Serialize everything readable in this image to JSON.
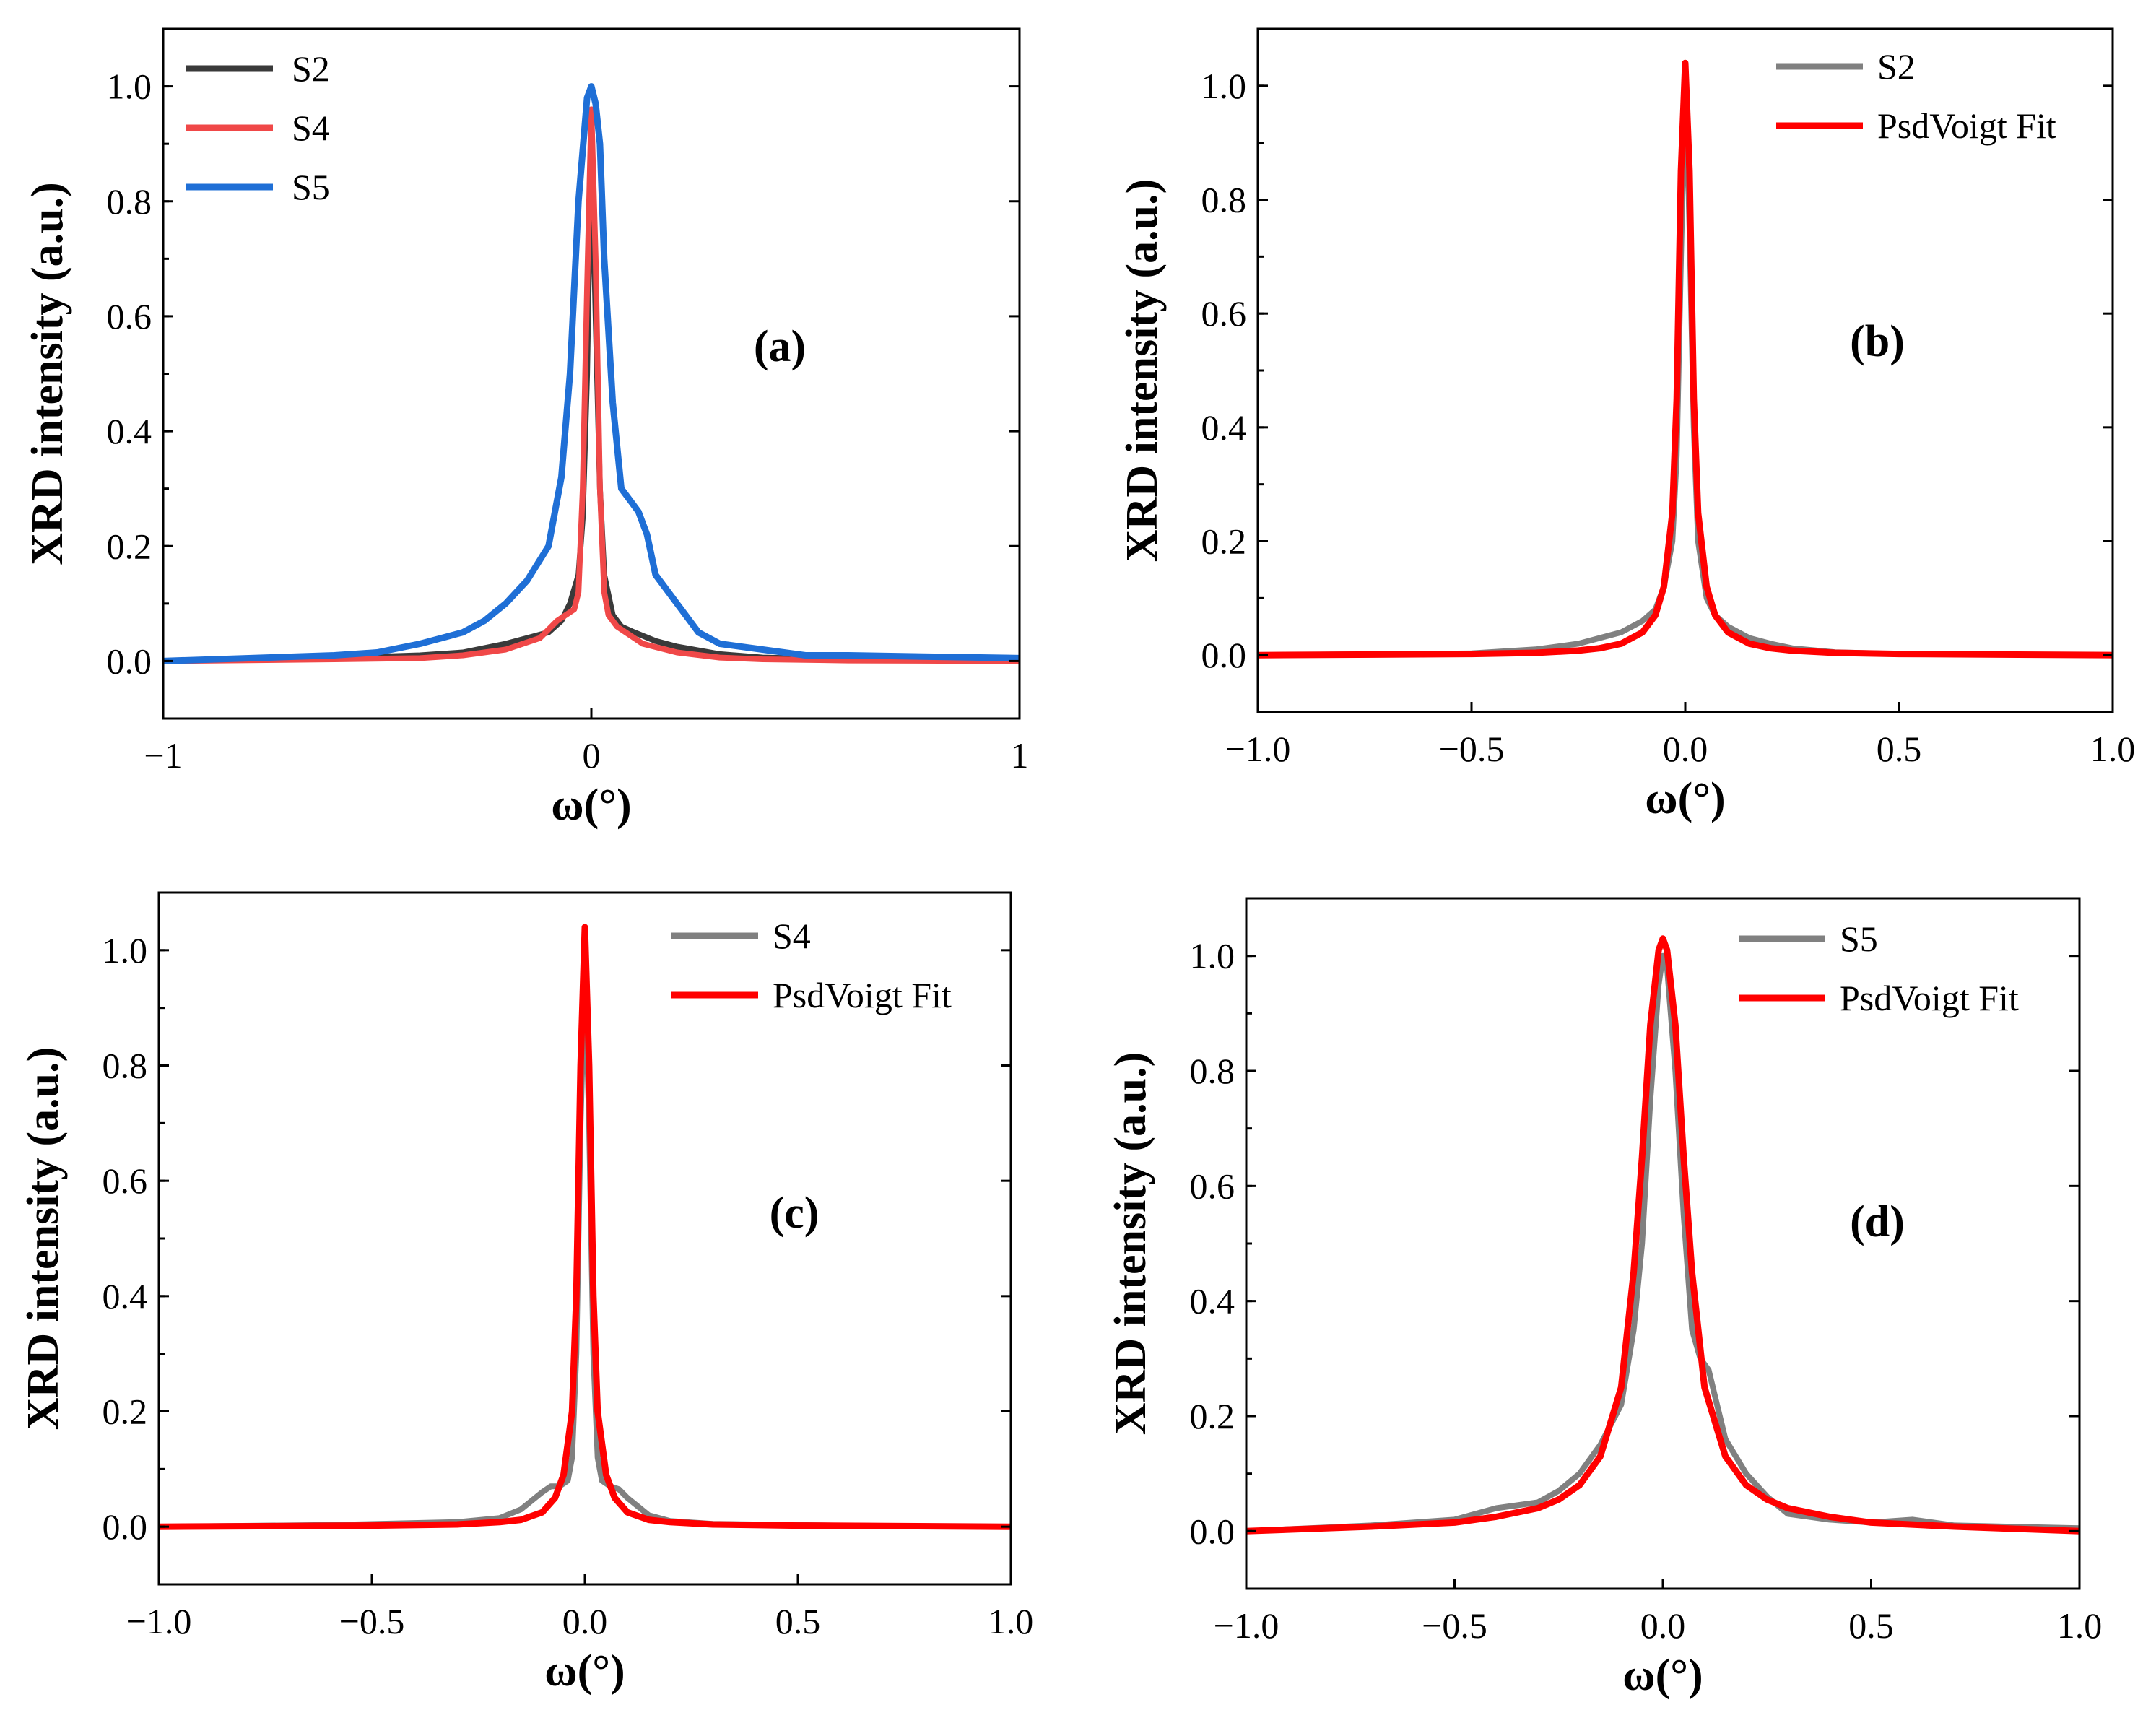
{
  "figure": {
    "panels": [
      {
        "id": "a",
        "label": "(a)",
        "xticks": [
          -1,
          0,
          1
        ],
        "xtick_labels": [
          "−1",
          "0",
          "1"
        ],
        "legend": [
          {
            "name": "S2",
            "color": "#3a3a3a"
          },
          {
            "name": "S4",
            "color": "#f04848"
          },
          {
            "name": "S5",
            "color": "#1f6fd6"
          }
        ]
      },
      {
        "id": "b",
        "label": "(b)",
        "xticks": [
          -1.0,
          -0.5,
          0.0,
          0.5,
          1.0
        ],
        "xtick_labels": [
          "−1.0",
          "−0.5",
          "0.0",
          "0.5",
          "1.0"
        ],
        "legend": [
          {
            "name": "S2",
            "color": "#808080"
          },
          {
            "name": "PsdVoigt Fit",
            "color": "#ff0000"
          }
        ]
      },
      {
        "id": "c",
        "label": "(c)",
        "xticks": [
          -1.0,
          -0.5,
          0.0,
          0.5,
          1.0
        ],
        "xtick_labels": [
          "−1.0",
          "−0.5",
          "0.0",
          "0.5",
          "1.0"
        ],
        "legend": [
          {
            "name": "S4",
            "color": "#808080"
          },
          {
            "name": "PsdVoigt Fit",
            "color": "#ff0000"
          }
        ]
      },
      {
        "id": "d",
        "label": "(d)",
        "xticks": [
          -1.0,
          -0.5,
          0.0,
          0.5,
          1.0
        ],
        "xtick_labels": [
          "−1.0",
          "−0.5",
          "0.0",
          "0.5",
          "1.0"
        ],
        "legend": [
          {
            "name": "S5",
            "color": "#808080"
          },
          {
            "name": "PsdVoigt Fit",
            "color": "#ff0000"
          }
        ]
      }
    ]
  },
  "chart_data": [
    {
      "panel": "a",
      "type": "line",
      "xlabel": "ω(°)",
      "ylabel": "XRD intensity (a.u.)",
      "xlim": [
        -1,
        1
      ],
      "ylim": [
        -0.1,
        1.1
      ],
      "yticks": [
        0.0,
        0.2,
        0.4,
        0.6,
        0.8,
        1.0
      ],
      "ytick_labels": [
        "0.0",
        "0.2",
        "0.4",
        "0.6",
        "0.8",
        "1.0"
      ],
      "series": [
        {
          "name": "S2",
          "color": "#3a3a3a",
          "x": [
            -1.0,
            -0.6,
            -0.4,
            -0.3,
            -0.2,
            -0.15,
            -0.1,
            -0.07,
            -0.05,
            -0.03,
            -0.02,
            -0.01,
            0.0,
            0.01,
            0.02,
            0.03,
            0.05,
            0.07,
            0.1,
            0.15,
            0.2,
            0.3,
            0.4,
            0.6,
            1.0
          ],
          "y": [
            0.0,
            0.005,
            0.01,
            0.015,
            0.03,
            0.04,
            0.05,
            0.07,
            0.1,
            0.15,
            0.25,
            0.5,
            0.93,
            0.6,
            0.3,
            0.15,
            0.08,
            0.06,
            0.05,
            0.035,
            0.025,
            0.012,
            0.006,
            0.003,
            0.0
          ]
        },
        {
          "name": "S4",
          "color": "#f04848",
          "x": [
            -1.0,
            -0.6,
            -0.4,
            -0.3,
            -0.2,
            -0.12,
            -0.08,
            -0.06,
            -0.04,
            -0.03,
            -0.02,
            -0.01,
            0.0,
            0.01,
            0.02,
            0.03,
            0.04,
            0.06,
            0.08,
            0.12,
            0.2,
            0.3,
            0.4,
            0.6,
            1.0
          ],
          "y": [
            0.0,
            0.003,
            0.005,
            0.01,
            0.02,
            0.04,
            0.07,
            0.08,
            0.09,
            0.12,
            0.3,
            0.65,
            0.96,
            0.7,
            0.3,
            0.12,
            0.08,
            0.06,
            0.05,
            0.03,
            0.015,
            0.006,
            0.003,
            0.001,
            0.0
          ]
        },
        {
          "name": "S5",
          "color": "#1f6fd6",
          "x": [
            -1.0,
            -0.6,
            -0.5,
            -0.4,
            -0.35,
            -0.3,
            -0.25,
            -0.2,
            -0.15,
            -0.1,
            -0.07,
            -0.05,
            -0.03,
            -0.01,
            0.0,
            0.01,
            0.02,
            0.03,
            0.05,
            0.07,
            0.09,
            0.11,
            0.13,
            0.15,
            0.2,
            0.25,
            0.3,
            0.4,
            0.5,
            0.6,
            1.0
          ],
          "y": [
            0.0,
            0.01,
            0.015,
            0.03,
            0.04,
            0.05,
            0.07,
            0.1,
            0.14,
            0.2,
            0.32,
            0.5,
            0.8,
            0.98,
            1.0,
            0.97,
            0.9,
            0.7,
            0.45,
            0.3,
            0.28,
            0.26,
            0.22,
            0.15,
            0.1,
            0.05,
            0.03,
            0.02,
            0.01,
            0.01,
            0.005
          ]
        }
      ]
    },
    {
      "panel": "b",
      "type": "line",
      "xlabel": "ω(°)",
      "ylabel": "XRD intensity (a.u.)",
      "xlim": [
        -1.0,
        1.0
      ],
      "ylim": [
        -0.1,
        1.1
      ],
      "yticks": [
        0.0,
        0.2,
        0.4,
        0.6,
        0.8,
        1.0
      ],
      "ytick_labels": [
        "0.0",
        "0.2",
        "0.4",
        "0.6",
        "0.8",
        "1.0"
      ],
      "series": [
        {
          "name": "S2",
          "color": "#808080",
          "x": [
            -1.0,
            -0.5,
            -0.35,
            -0.25,
            -0.2,
            -0.15,
            -0.1,
            -0.07,
            -0.05,
            -0.03,
            -0.02,
            -0.01,
            0.0,
            0.01,
            0.02,
            0.03,
            0.05,
            0.07,
            0.1,
            0.15,
            0.2,
            0.25,
            0.35,
            0.5,
            1.0
          ],
          "y": [
            0.0,
            0.003,
            0.01,
            0.02,
            0.03,
            0.04,
            0.06,
            0.08,
            0.12,
            0.2,
            0.35,
            0.7,
            1.03,
            0.75,
            0.4,
            0.2,
            0.1,
            0.07,
            0.05,
            0.03,
            0.02,
            0.012,
            0.005,
            0.002,
            0.0
          ]
        },
        {
          "name": "PsdVoigt Fit",
          "color": "#ff0000",
          "x": [
            -1.0,
            -0.5,
            -0.35,
            -0.25,
            -0.2,
            -0.15,
            -0.1,
            -0.07,
            -0.05,
            -0.03,
            -0.02,
            -0.01,
            0.0,
            0.01,
            0.02,
            0.03,
            0.05,
            0.07,
            0.1,
            0.15,
            0.2,
            0.25,
            0.35,
            0.5,
            1.0
          ],
          "y": [
            0.0,
            0.002,
            0.004,
            0.008,
            0.012,
            0.02,
            0.04,
            0.07,
            0.12,
            0.25,
            0.45,
            0.85,
            1.04,
            0.85,
            0.45,
            0.25,
            0.12,
            0.07,
            0.04,
            0.02,
            0.012,
            0.008,
            0.004,
            0.002,
            0.0
          ]
        }
      ]
    },
    {
      "panel": "c",
      "type": "line",
      "xlabel": "ω(°)",
      "ylabel": "XRD intensity (a.u.)",
      "xlim": [
        -1.0,
        1.0
      ],
      "ylim": [
        -0.1,
        1.1
      ],
      "yticks": [
        0.0,
        0.2,
        0.4,
        0.6,
        0.8,
        1.0
      ],
      "ytick_labels": [
        "0.0",
        "0.2",
        "0.4",
        "0.6",
        "0.8",
        "1.0"
      ],
      "series": [
        {
          "name": "S4",
          "color": "#808080",
          "x": [
            -1.0,
            -0.6,
            -0.3,
            -0.2,
            -0.15,
            -0.1,
            -0.08,
            -0.06,
            -0.04,
            -0.03,
            -0.02,
            -0.01,
            0.0,
            0.01,
            0.02,
            0.03,
            0.04,
            0.06,
            0.08,
            0.1,
            0.15,
            0.2,
            0.3,
            0.6,
            1.0
          ],
          "y": [
            0.0,
            0.003,
            0.008,
            0.015,
            0.03,
            0.06,
            0.07,
            0.07,
            0.08,
            0.12,
            0.3,
            0.7,
            0.97,
            0.7,
            0.3,
            0.12,
            0.08,
            0.07,
            0.065,
            0.05,
            0.02,
            0.01,
            0.005,
            0.002,
            0.0
          ]
        },
        {
          "name": "PsdVoigt Fit",
          "color": "#ff0000",
          "x": [
            -1.0,
            -0.5,
            -0.3,
            -0.2,
            -0.15,
            -0.1,
            -0.07,
            -0.05,
            -0.03,
            -0.02,
            -0.01,
            0.0,
            0.01,
            0.02,
            0.03,
            0.05,
            0.07,
            0.1,
            0.15,
            0.2,
            0.3,
            0.5,
            1.0
          ],
          "y": [
            0.0,
            0.002,
            0.004,
            0.008,
            0.012,
            0.025,
            0.05,
            0.09,
            0.2,
            0.4,
            0.8,
            1.04,
            0.8,
            0.4,
            0.2,
            0.09,
            0.05,
            0.025,
            0.012,
            0.008,
            0.004,
            0.002,
            0.0
          ]
        }
      ]
    },
    {
      "panel": "d",
      "type": "line",
      "xlabel": "ω(°)",
      "ylabel": "XRD intensity (a.u.)",
      "xlim": [
        -1.0,
        1.0
      ],
      "ylim": [
        -0.1,
        1.1
      ],
      "yticks": [
        0.0,
        0.2,
        0.4,
        0.6,
        0.8,
        1.0
      ],
      "ytick_labels": [
        "0.0",
        "0.2",
        "0.4",
        "0.6",
        "0.8",
        "1.0"
      ],
      "series": [
        {
          "name": "S5",
          "color": "#808080",
          "x": [
            -1.0,
            -0.7,
            -0.5,
            -0.4,
            -0.3,
            -0.25,
            -0.2,
            -0.15,
            -0.1,
            -0.07,
            -0.05,
            -0.03,
            -0.01,
            0.0,
            0.01,
            0.03,
            0.05,
            0.07,
            0.09,
            0.11,
            0.13,
            0.15,
            0.2,
            0.25,
            0.3,
            0.4,
            0.5,
            0.6,
            0.7,
            1.0
          ],
          "y": [
            0.0,
            0.01,
            0.02,
            0.04,
            0.05,
            0.07,
            0.1,
            0.15,
            0.22,
            0.35,
            0.5,
            0.75,
            0.95,
            1.0,
            0.98,
            0.8,
            0.55,
            0.35,
            0.3,
            0.28,
            0.22,
            0.16,
            0.1,
            0.06,
            0.03,
            0.02,
            0.015,
            0.02,
            0.01,
            0.005
          ]
        },
        {
          "name": "PsdVoigt Fit",
          "color": "#ff0000",
          "x": [
            -1.0,
            -0.7,
            -0.5,
            -0.4,
            -0.3,
            -0.25,
            -0.2,
            -0.15,
            -0.1,
            -0.07,
            -0.05,
            -0.03,
            -0.01,
            0.0,
            0.01,
            0.03,
            0.05,
            0.07,
            0.1,
            0.15,
            0.2,
            0.25,
            0.3,
            0.4,
            0.5,
            0.7,
            1.0
          ],
          "y": [
            0.0,
            0.008,
            0.015,
            0.025,
            0.04,
            0.055,
            0.08,
            0.13,
            0.25,
            0.45,
            0.65,
            0.88,
            1.01,
            1.03,
            1.01,
            0.88,
            0.65,
            0.45,
            0.25,
            0.13,
            0.08,
            0.055,
            0.04,
            0.025,
            0.015,
            0.008,
            0.0
          ]
        }
      ]
    }
  ]
}
